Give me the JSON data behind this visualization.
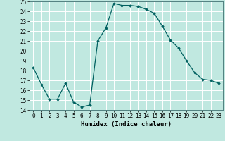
{
  "x": [
    0,
    1,
    2,
    3,
    4,
    5,
    6,
    7,
    8,
    9,
    10,
    11,
    12,
    13,
    14,
    15,
    16,
    17,
    18,
    19,
    20,
    21,
    22,
    23
  ],
  "y": [
    18.3,
    16.6,
    15.1,
    15.1,
    16.7,
    14.8,
    14.3,
    14.5,
    21.0,
    22.3,
    24.8,
    24.6,
    24.6,
    24.5,
    24.2,
    23.8,
    22.5,
    21.1,
    20.3,
    19.0,
    17.8,
    17.1,
    17.0,
    16.7
  ],
  "line_color": "#006060",
  "marker": "D",
  "marker_size": 1.8,
  "bg_color": "#c0e8e0",
  "grid_color": "#ffffff",
  "xlabel": "Humidex (Indice chaleur)",
  "ylim": [
    14,
    25
  ],
  "xlim": [
    -0.5,
    23.5
  ],
  "yticks": [
    14,
    15,
    16,
    17,
    18,
    19,
    20,
    21,
    22,
    23,
    24,
    25
  ],
  "xticks": [
    0,
    1,
    2,
    3,
    4,
    5,
    6,
    7,
    8,
    9,
    10,
    11,
    12,
    13,
    14,
    15,
    16,
    17,
    18,
    19,
    20,
    21,
    22,
    23
  ],
  "xlabel_fontsize": 6.5,
  "tick_fontsize": 5.5,
  "line_width": 0.9
}
